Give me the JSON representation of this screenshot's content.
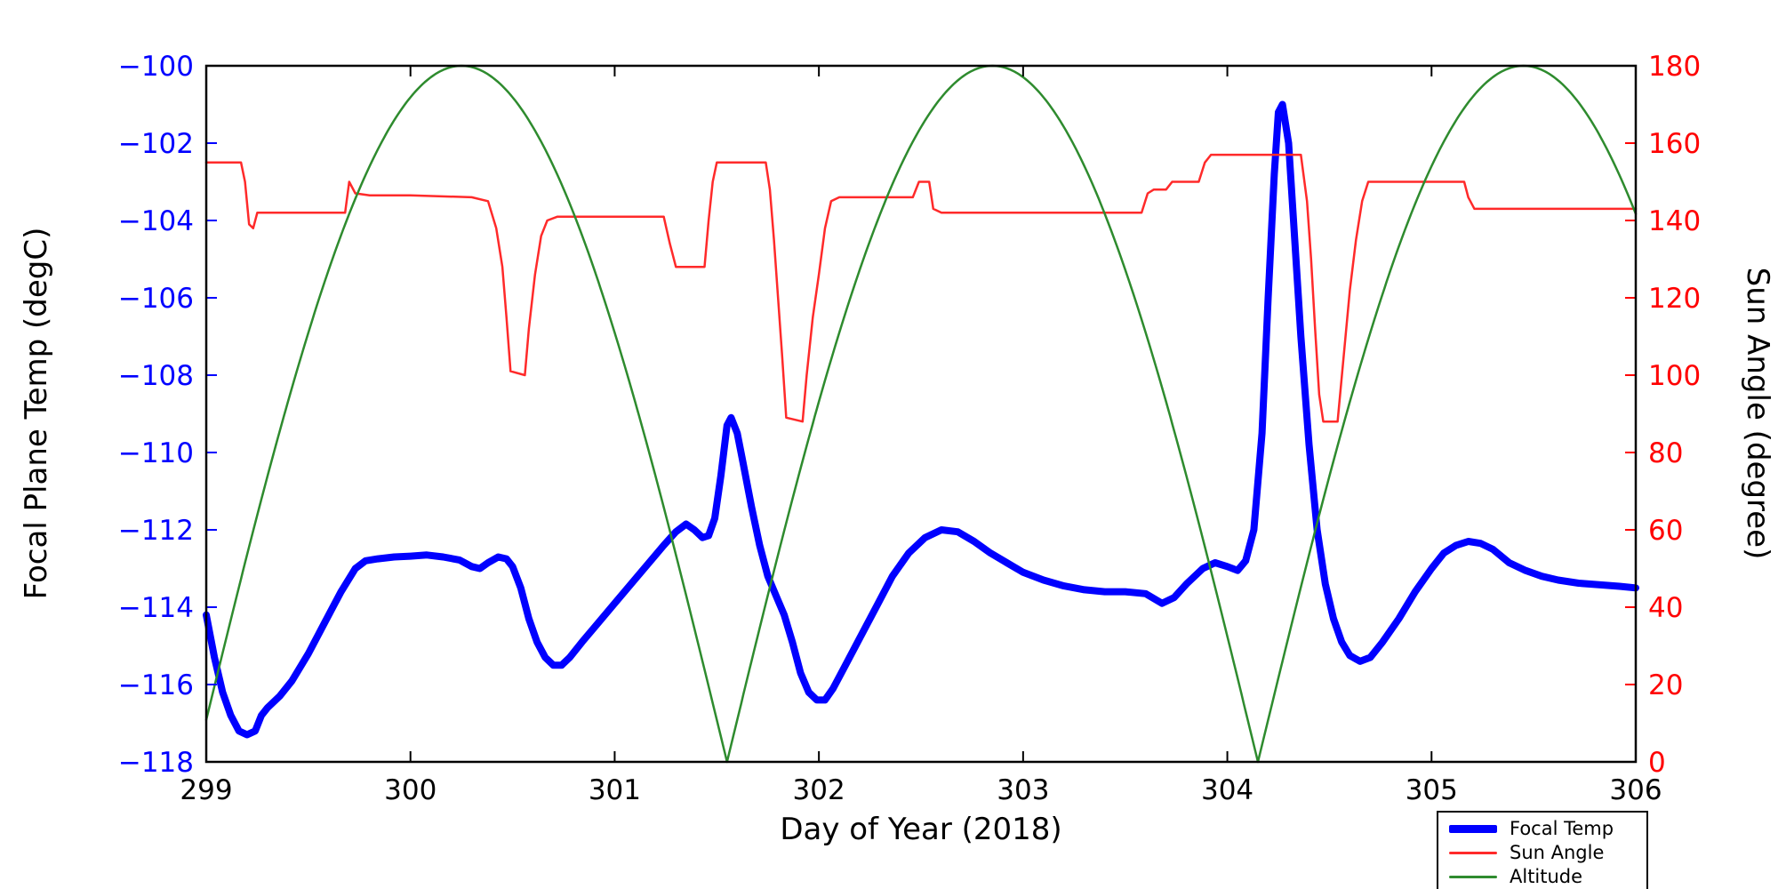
{
  "chart_data": {
    "type": "line",
    "title": "",
    "xlabel": "Day of Year (2018)",
    "x_range": [
      299,
      306
    ],
    "x_ticks": [
      299,
      300,
      301,
      302,
      303,
      304,
      305,
      306
    ],
    "x_tick_labels": [
      "299",
      "300",
      "301",
      "302",
      "303",
      "304",
      "305",
      "306"
    ],
    "grid": false,
    "left_axis": {
      "label": "Focal Plane Temp (degC)",
      "ylim": [
        -118,
        -100
      ],
      "ticks": [
        -118,
        -116,
        -114,
        -112,
        -110,
        -108,
        -106,
        -104,
        -102,
        -100
      ],
      "tick_labels": [
        "−118",
        "−116",
        "−114",
        "−112",
        "−110",
        "−108",
        "−106",
        "−104",
        "−102",
        "−100"
      ],
      "color": "#0000ff"
    },
    "right_axis": {
      "label": "Sun Angle (degree)",
      "ylim": [
        0,
        180
      ],
      "ticks": [
        0,
        20,
        40,
        60,
        80,
        100,
        120,
        140,
        160,
        180
      ],
      "tick_labels": [
        "0",
        "20",
        "40",
        "60",
        "80",
        "100",
        "120",
        "140",
        "160",
        "180"
      ],
      "color": "#ff0000"
    },
    "series": [
      {
        "name": "Focal Temp",
        "axis": "left",
        "color": "#0000ff",
        "width": 8,
        "points": [
          [
            299.0,
            -114.2
          ],
          [
            299.04,
            -115.3
          ],
          [
            299.08,
            -116.2
          ],
          [
            299.12,
            -116.8
          ],
          [
            299.16,
            -117.2
          ],
          [
            299.2,
            -117.3
          ],
          [
            299.24,
            -117.2
          ],
          [
            299.27,
            -116.8
          ],
          [
            299.3,
            -116.6
          ],
          [
            299.36,
            -116.3
          ],
          [
            299.42,
            -115.9
          ],
          [
            299.5,
            -115.2
          ],
          [
            299.58,
            -114.4
          ],
          [
            299.66,
            -113.6
          ],
          [
            299.73,
            -113.0
          ],
          [
            299.78,
            -112.8
          ],
          [
            299.84,
            -112.75
          ],
          [
            299.92,
            -112.7
          ],
          [
            300.0,
            -112.68
          ],
          [
            300.08,
            -112.65
          ],
          [
            300.16,
            -112.7
          ],
          [
            300.24,
            -112.78
          ],
          [
            300.3,
            -112.95
          ],
          [
            300.34,
            -113.0
          ],
          [
            300.38,
            -112.85
          ],
          [
            300.43,
            -112.7
          ],
          [
            300.47,
            -112.75
          ],
          [
            300.5,
            -112.95
          ],
          [
            300.54,
            -113.5
          ],
          [
            300.58,
            -114.3
          ],
          [
            300.62,
            -114.9
          ],
          [
            300.66,
            -115.3
          ],
          [
            300.7,
            -115.5
          ],
          [
            300.74,
            -115.5
          ],
          [
            300.78,
            -115.3
          ],
          [
            300.84,
            -114.9
          ],
          [
            300.92,
            -114.4
          ],
          [
            301.0,
            -113.9
          ],
          [
            301.08,
            -113.4
          ],
          [
            301.16,
            -112.9
          ],
          [
            301.24,
            -112.4
          ],
          [
            301.3,
            -112.05
          ],
          [
            301.35,
            -111.85
          ],
          [
            301.39,
            -112.0
          ],
          [
            301.43,
            -112.2
          ],
          [
            301.46,
            -112.15
          ],
          [
            301.49,
            -111.7
          ],
          [
            301.52,
            -110.6
          ],
          [
            301.55,
            -109.3
          ],
          [
            301.57,
            -109.1
          ],
          [
            301.6,
            -109.5
          ],
          [
            301.63,
            -110.3
          ],
          [
            301.67,
            -111.4
          ],
          [
            301.71,
            -112.4
          ],
          [
            301.75,
            -113.2
          ],
          [
            301.79,
            -113.7
          ],
          [
            301.83,
            -114.2
          ],
          [
            301.87,
            -114.9
          ],
          [
            301.91,
            -115.7
          ],
          [
            301.95,
            -116.2
          ],
          [
            301.99,
            -116.4
          ],
          [
            302.03,
            -116.4
          ],
          [
            302.07,
            -116.1
          ],
          [
            302.12,
            -115.6
          ],
          [
            302.2,
            -114.8
          ],
          [
            302.28,
            -114.0
          ],
          [
            302.36,
            -113.2
          ],
          [
            302.44,
            -112.6
          ],
          [
            302.52,
            -112.2
          ],
          [
            302.6,
            -112.0
          ],
          [
            302.68,
            -112.05
          ],
          [
            302.76,
            -112.3
          ],
          [
            302.84,
            -112.6
          ],
          [
            302.92,
            -112.85
          ],
          [
            303.0,
            -113.1
          ],
          [
            303.1,
            -113.3
          ],
          [
            303.2,
            -113.45
          ],
          [
            303.3,
            -113.55
          ],
          [
            303.4,
            -113.6
          ],
          [
            303.5,
            -113.6
          ],
          [
            303.6,
            -113.65
          ],
          [
            303.68,
            -113.9
          ],
          [
            303.74,
            -113.75
          ],
          [
            303.8,
            -113.4
          ],
          [
            303.88,
            -113.0
          ],
          [
            303.94,
            -112.85
          ],
          [
            304.0,
            -112.95
          ],
          [
            304.05,
            -113.05
          ],
          [
            304.09,
            -112.8
          ],
          [
            304.13,
            -112.0
          ],
          [
            304.17,
            -109.5
          ],
          [
            304.2,
            -106.0
          ],
          [
            304.23,
            -102.8
          ],
          [
            304.25,
            -101.2
          ],
          [
            304.27,
            -101.0
          ],
          [
            304.3,
            -102.0
          ],
          [
            304.33,
            -104.5
          ],
          [
            304.36,
            -107.0
          ],
          [
            304.4,
            -109.8
          ],
          [
            304.44,
            -112.0
          ],
          [
            304.48,
            -113.4
          ],
          [
            304.52,
            -114.3
          ],
          [
            304.56,
            -114.9
          ],
          [
            304.6,
            -115.25
          ],
          [
            304.65,
            -115.4
          ],
          [
            304.7,
            -115.3
          ],
          [
            304.76,
            -114.9
          ],
          [
            304.84,
            -114.3
          ],
          [
            304.92,
            -113.6
          ],
          [
            305.0,
            -113.0
          ],
          [
            305.06,
            -112.6
          ],
          [
            305.12,
            -112.4
          ],
          [
            305.18,
            -112.3
          ],
          [
            305.24,
            -112.35
          ],
          [
            305.3,
            -112.5
          ],
          [
            305.38,
            -112.85
          ],
          [
            305.46,
            -113.05
          ],
          [
            305.54,
            -113.2
          ],
          [
            305.62,
            -113.3
          ],
          [
            305.72,
            -113.38
          ],
          [
            305.82,
            -113.42
          ],
          [
            305.92,
            -113.46
          ],
          [
            306.0,
            -113.5
          ]
        ]
      },
      {
        "name": "Sun Angle",
        "axis": "right",
        "color": "#ff2a2a",
        "width": 2.5,
        "points": [
          [
            299.0,
            155
          ],
          [
            299.17,
            155
          ],
          [
            299.19,
            150
          ],
          [
            299.21,
            139
          ],
          [
            299.23,
            138
          ],
          [
            299.25,
            142
          ],
          [
            299.4,
            142
          ],
          [
            299.68,
            142
          ],
          [
            299.7,
            150
          ],
          [
            299.73,
            147
          ],
          [
            299.8,
            146.5
          ],
          [
            300.0,
            146.5
          ],
          [
            300.3,
            146
          ],
          [
            300.38,
            145
          ],
          [
            300.42,
            138
          ],
          [
            300.45,
            128
          ],
          [
            300.47,
            115
          ],
          [
            300.49,
            101
          ],
          [
            300.56,
            100
          ],
          [
            300.58,
            112
          ],
          [
            300.61,
            126
          ],
          [
            300.64,
            136
          ],
          [
            300.67,
            140
          ],
          [
            300.72,
            141
          ],
          [
            301.0,
            141
          ],
          [
            301.24,
            141
          ],
          [
            301.27,
            134
          ],
          [
            301.3,
            128
          ],
          [
            301.44,
            128
          ],
          [
            301.46,
            140
          ],
          [
            301.48,
            150
          ],
          [
            301.5,
            155
          ],
          [
            301.74,
            155
          ],
          [
            301.76,
            148
          ],
          [
            301.78,
            135
          ],
          [
            301.8,
            120
          ],
          [
            301.82,
            105
          ],
          [
            301.84,
            89
          ],
          [
            301.92,
            88
          ],
          [
            301.94,
            100
          ],
          [
            301.97,
            115
          ],
          [
            302.0,
            126
          ],
          [
            302.03,
            138
          ],
          [
            302.06,
            145
          ],
          [
            302.1,
            146
          ],
          [
            302.46,
            146
          ],
          [
            302.49,
            150
          ],
          [
            302.54,
            150
          ],
          [
            302.56,
            143
          ],
          [
            302.6,
            142
          ],
          [
            303.0,
            142
          ],
          [
            303.58,
            142
          ],
          [
            303.61,
            147
          ],
          [
            303.64,
            148
          ],
          [
            303.7,
            148
          ],
          [
            303.73,
            150
          ],
          [
            303.86,
            150
          ],
          [
            303.89,
            155
          ],
          [
            303.92,
            157
          ],
          [
            304.0,
            157
          ],
          [
            304.36,
            157
          ],
          [
            304.39,
            145
          ],
          [
            304.41,
            130
          ],
          [
            304.43,
            112
          ],
          [
            304.45,
            95
          ],
          [
            304.47,
            88
          ],
          [
            304.54,
            88
          ],
          [
            304.57,
            105
          ],
          [
            304.6,
            122
          ],
          [
            304.63,
            135
          ],
          [
            304.66,
            145
          ],
          [
            304.69,
            150
          ],
          [
            304.8,
            150
          ],
          [
            305.0,
            150
          ],
          [
            305.16,
            150
          ],
          [
            305.18,
            146
          ],
          [
            305.21,
            143
          ],
          [
            305.5,
            143
          ],
          [
            306.0,
            143
          ]
        ]
      },
      {
        "name": "Altitude",
        "axis": "right",
        "color": "#2e8b2e",
        "width": 2.5,
        "generator": {
          "kind": "abs_sine",
          "amplitude": 180,
          "period": 2.6,
          "zero_crossing_x": 298.95,
          "x_start": 299,
          "x_end": 306,
          "step": 0.01
        },
        "key_points": [
          [
            298.95,
            0
          ],
          [
            300.25,
            180
          ],
          [
            301.55,
            0
          ],
          [
            302.85,
            180
          ],
          [
            304.15,
            0
          ],
          [
            305.45,
            180
          ],
          [
            306.0,
            142
          ]
        ]
      }
    ],
    "legend": {
      "position": "lower-right-outside",
      "items": [
        {
          "label": "Focal Temp",
          "color": "#0000ff",
          "sample_height": 9
        },
        {
          "label": "Sun Angle",
          "color": "#ff2a2a",
          "sample_height": 3
        },
        {
          "label": "Altitude",
          "color": "#2e8b2e",
          "sample_height": 3
        }
      ]
    }
  }
}
